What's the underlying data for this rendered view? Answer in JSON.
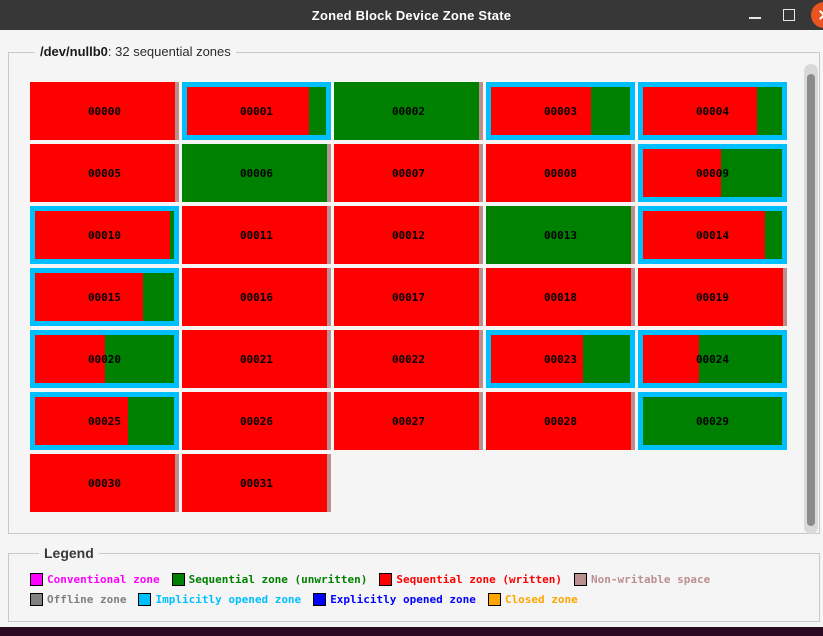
{
  "window": {
    "title": "Zoned Block Device Zone State",
    "controls": {
      "minimize": "minimize-icon",
      "maximize": "maximize-icon",
      "close": "close-icon"
    }
  },
  "device": {
    "path": "/dev/nullb0",
    "summary": ": 32 sequential zones"
  },
  "colors": {
    "conventional": "#FF00FF",
    "seq_unwritten": "#008000",
    "seq_written": "#FF0000",
    "non_writable": "#BC8F8F",
    "offline": "#808080",
    "implicit_open": "#00BFFF",
    "explicit_open": "#0000FF",
    "closed": "#FFA500",
    "titlebar_bg": "#373737",
    "close_button": "#E95420",
    "window_bg": "#F5F5F5",
    "desktop_strip": "#2A0A20"
  },
  "zones": [
    {
      "label": "00000",
      "state": "seq-written",
      "written_pct": 100,
      "non_writable": true
    },
    {
      "label": "00001",
      "state": "implicit-open",
      "written_pct": 88,
      "non_writable": false
    },
    {
      "label": "00002",
      "state": "seq-unwritten",
      "written_pct": 0,
      "non_writable": true
    },
    {
      "label": "00003",
      "state": "implicit-open",
      "written_pct": 72,
      "non_writable": false
    },
    {
      "label": "00004",
      "state": "implicit-open",
      "written_pct": 82,
      "non_writable": false
    },
    {
      "label": "00005",
      "state": "seq-written",
      "written_pct": 100,
      "non_writable": true
    },
    {
      "label": "00006",
      "state": "seq-unwritten",
      "written_pct": 0,
      "non_writable": true
    },
    {
      "label": "00007",
      "state": "seq-written",
      "written_pct": 100,
      "non_writable": true
    },
    {
      "label": "00008",
      "state": "seq-written",
      "written_pct": 100,
      "non_writable": true
    },
    {
      "label": "00009",
      "state": "implicit-open",
      "written_pct": 56,
      "non_writable": false
    },
    {
      "label": "00010",
      "state": "implicit-open",
      "written_pct": 97,
      "non_writable": false
    },
    {
      "label": "00011",
      "state": "seq-written",
      "written_pct": 100,
      "non_writable": true
    },
    {
      "label": "00012",
      "state": "seq-written",
      "written_pct": 100,
      "non_writable": true
    },
    {
      "label": "00013",
      "state": "seq-unwritten",
      "written_pct": 0,
      "non_writable": true
    },
    {
      "label": "00014",
      "state": "implicit-open",
      "written_pct": 88,
      "non_writable": false
    },
    {
      "label": "00015",
      "state": "implicit-open",
      "written_pct": 78,
      "non_writable": false
    },
    {
      "label": "00016",
      "state": "seq-written",
      "written_pct": 100,
      "non_writable": true
    },
    {
      "label": "00017",
      "state": "seq-written",
      "written_pct": 100,
      "non_writable": true
    },
    {
      "label": "00018",
      "state": "seq-written",
      "written_pct": 100,
      "non_writable": true
    },
    {
      "label": "00019",
      "state": "seq-written",
      "written_pct": 100,
      "non_writable": true
    },
    {
      "label": "00020",
      "state": "implicit-open",
      "written_pct": 50,
      "non_writable": false
    },
    {
      "label": "00021",
      "state": "seq-written",
      "written_pct": 100,
      "non_writable": true
    },
    {
      "label": "00022",
      "state": "seq-written",
      "written_pct": 100,
      "non_writable": true
    },
    {
      "label": "00023",
      "state": "implicit-open",
      "written_pct": 66,
      "non_writable": false
    },
    {
      "label": "00024",
      "state": "implicit-open",
      "written_pct": 40,
      "non_writable": false
    },
    {
      "label": "00025",
      "state": "implicit-open",
      "written_pct": 67,
      "non_writable": false
    },
    {
      "label": "00026",
      "state": "seq-written",
      "written_pct": 100,
      "non_writable": true
    },
    {
      "label": "00027",
      "state": "seq-written",
      "written_pct": 100,
      "non_writable": true
    },
    {
      "label": "00028",
      "state": "seq-written",
      "written_pct": 100,
      "non_writable": true
    },
    {
      "label": "00029",
      "state": "implicit-open",
      "written_pct": 0,
      "non_writable": false
    },
    {
      "label": "00030",
      "state": "seq-written",
      "written_pct": 100,
      "non_writable": true
    },
    {
      "label": "00031",
      "state": "seq-written",
      "written_pct": 100,
      "non_writable": true
    }
  ],
  "legend": {
    "title": "Legend",
    "rows": [
      [
        {
          "label": "Conventional zone",
          "color": "#FF00FF"
        },
        {
          "label": "Sequential zone (unwritten)",
          "color": "#008000"
        },
        {
          "label": "Sequential zone (written)",
          "color": "#FF0000"
        },
        {
          "label": "Non-writable space",
          "color": "#BC8F8F"
        }
      ],
      [
        {
          "label": "Offline zone",
          "color": "#808080"
        },
        {
          "label": "Implicitly opened zone",
          "color": "#00BFFF"
        },
        {
          "label": "Explicitly opened zone",
          "color": "#0000FF"
        },
        {
          "label": "Closed zone",
          "color": "#FFA500"
        }
      ]
    ]
  }
}
